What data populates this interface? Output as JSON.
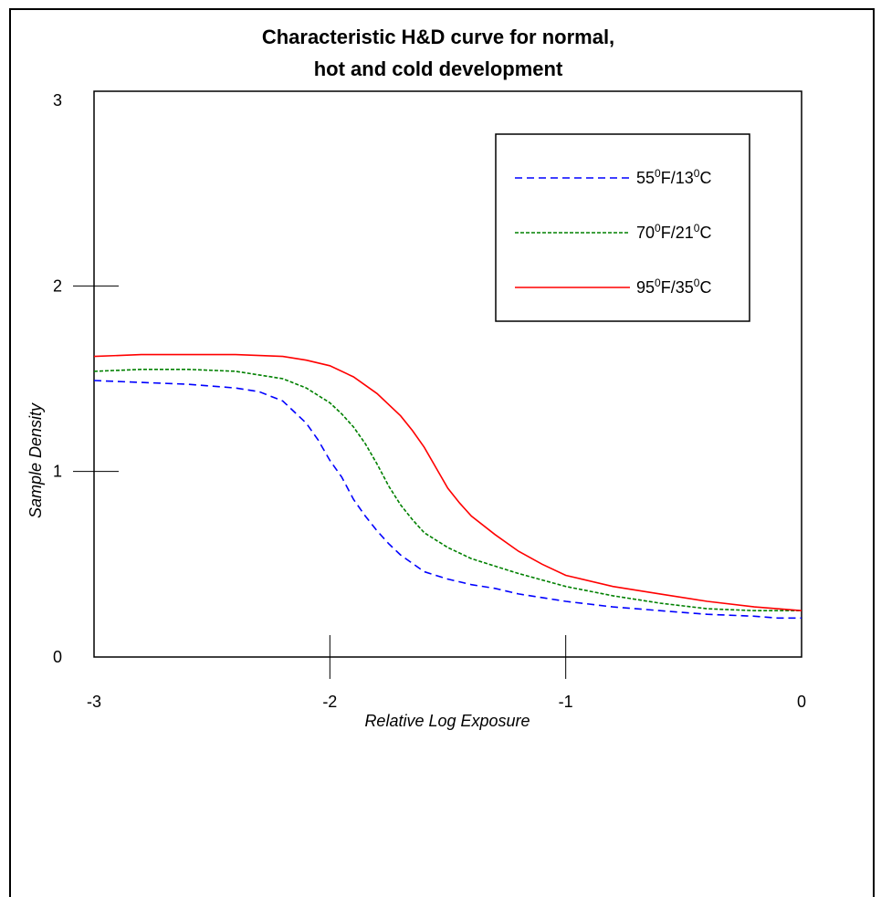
{
  "chart_data": {
    "type": "line",
    "title_lines": [
      "Characteristic H&D curve for normal,",
      "hot and cold development"
    ],
    "xlabel": "Relative Log Exposure",
    "ylabel": "Sample Density",
    "xlim": [
      -3,
      0
    ],
    "ylim": [
      0,
      3
    ],
    "x_ticks": [
      "-3",
      "-2",
      "-1",
      "0"
    ],
    "y_ticks": [
      "0",
      "1",
      "2",
      "3"
    ],
    "grid": false,
    "legend_position": "top-right",
    "series": [
      {
        "name_parts": [
          "55",
          "0",
          "F/13",
          "0",
          "C"
        ],
        "color": "#0000ff",
        "style": "dashed",
        "x": [
          -3.0,
          -2.8,
          -2.6,
          -2.4,
          -2.3,
          -2.2,
          -2.1,
          -2.05,
          -2.0,
          -1.95,
          -1.9,
          -1.85,
          -1.8,
          -1.75,
          -1.7,
          -1.6,
          -1.5,
          -1.4,
          -1.3,
          -1.2,
          -1.0,
          -0.8,
          -0.6,
          -0.4,
          -0.2,
          -0.1,
          0.0
        ],
        "values": [
          1.49,
          1.48,
          1.47,
          1.45,
          1.43,
          1.38,
          1.26,
          1.17,
          1.06,
          0.97,
          0.85,
          0.76,
          0.68,
          0.61,
          0.55,
          0.46,
          0.42,
          0.39,
          0.37,
          0.34,
          0.3,
          0.27,
          0.25,
          0.23,
          0.22,
          0.21,
          0.21
        ]
      },
      {
        "name_parts": [
          "70",
          "0",
          "F/21",
          "0",
          "C"
        ],
        "color": "#008000",
        "style": "dotted",
        "x": [
          -3.0,
          -2.8,
          -2.6,
          -2.4,
          -2.3,
          -2.2,
          -2.1,
          -2.0,
          -1.95,
          -1.9,
          -1.85,
          -1.8,
          -1.75,
          -1.7,
          -1.65,
          -1.6,
          -1.55,
          -1.5,
          -1.4,
          -1.3,
          -1.2,
          -1.0,
          -0.8,
          -0.6,
          -0.4,
          -0.2,
          0.0
        ],
        "values": [
          1.54,
          1.55,
          1.55,
          1.54,
          1.52,
          1.5,
          1.45,
          1.37,
          1.31,
          1.24,
          1.15,
          1.04,
          0.92,
          0.82,
          0.74,
          0.67,
          0.63,
          0.59,
          0.53,
          0.49,
          0.45,
          0.38,
          0.33,
          0.29,
          0.26,
          0.25,
          0.25
        ]
      },
      {
        "name_parts": [
          "95",
          "0",
          "F/35",
          "0",
          "C"
        ],
        "color": "#ff0000",
        "style": "solid",
        "x": [
          -3.0,
          -2.8,
          -2.6,
          -2.4,
          -2.2,
          -2.1,
          -2.0,
          -1.9,
          -1.8,
          -1.7,
          -1.65,
          -1.6,
          -1.55,
          -1.5,
          -1.45,
          -1.4,
          -1.3,
          -1.2,
          -1.1,
          -1.0,
          -0.8,
          -0.6,
          -0.4,
          -0.2,
          0.0
        ],
        "values": [
          1.62,
          1.63,
          1.63,
          1.63,
          1.62,
          1.6,
          1.57,
          1.51,
          1.42,
          1.3,
          1.22,
          1.13,
          1.02,
          0.91,
          0.83,
          0.76,
          0.66,
          0.57,
          0.5,
          0.44,
          0.38,
          0.34,
          0.3,
          0.27,
          0.25
        ]
      }
    ]
  }
}
